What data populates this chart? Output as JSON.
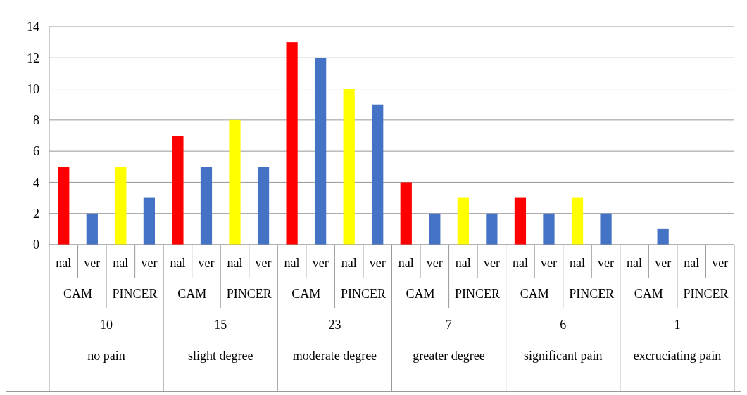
{
  "chart_data": {
    "type": "bar",
    "categories": [
      "nal",
      "ver",
      "nal",
      "ver",
      "nal",
      "ver",
      "nal",
      "ver",
      "nal",
      "ver",
      "nal",
      "ver",
      "nal",
      "ver",
      "nal",
      "ver",
      "nal",
      "ver",
      "nal",
      "ver",
      "nal",
      "ver",
      "nal",
      "ver"
    ],
    "values": [
      5,
      2,
      5,
      3,
      7,
      5,
      8,
      5,
      13,
      12,
      10,
      9,
      4,
      2,
      3,
      2,
      3,
      2,
      3,
      2,
      0,
      1,
      0,
      0
    ],
    "colors": [
      "#ff0000",
      "#4472c4",
      "#ffff00",
      "#4472c4",
      "#ff0000",
      "#4472c4",
      "#ffff00",
      "#4472c4",
      "#ff0000",
      "#4472c4",
      "#ffff00",
      "#4472c4",
      "#ff0000",
      "#4472c4",
      "#ffff00",
      "#4472c4",
      "#ff0000",
      "#4472c4",
      "#ffff00",
      "#4472c4",
      "#ff0000",
      "#4472c4",
      "#ffff00",
      "#4472c4"
    ],
    "ylim": [
      0,
      14
    ],
    "yticks": [
      0,
      2,
      4,
      6,
      8,
      10,
      12,
      14
    ],
    "grid": "y",
    "annotations": [
      "CAM",
      "PINCER",
      "CAM",
      "PINCER",
      "CAM",
      "PINCER",
      "CAM",
      "PINCER",
      "CAM",
      "PINCER",
      "CAM",
      "PINCER",
      "10",
      "15",
      "23",
      "7",
      "6",
      "1",
      "no pain",
      "slight degree",
      "moderate degree",
      "greater degree",
      "significant pain",
      "excruciating pain"
    ]
  }
}
